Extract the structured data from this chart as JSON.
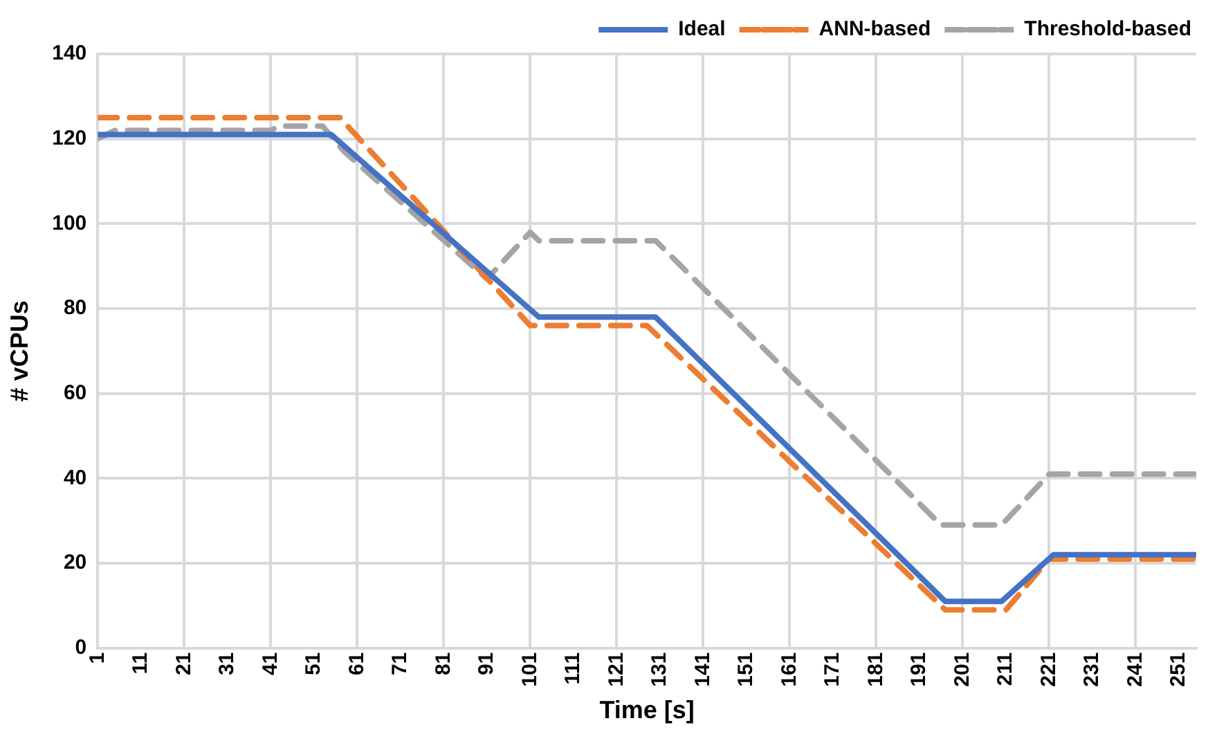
{
  "chart_data": {
    "type": "line",
    "xlabel": "Time [s]",
    "ylabel": "# vCPUs",
    "xlim": [
      1,
      255
    ],
    "xticks": [
      1,
      11,
      21,
      31,
      41,
      51,
      61,
      71,
      81,
      91,
      101,
      111,
      121,
      131,
      141,
      151,
      161,
      171,
      181,
      191,
      201,
      211,
      221,
      231,
      241,
      251
    ],
    "ylim": [
      0,
      140
    ],
    "yticks": [
      0,
      20,
      40,
      60,
      80,
      100,
      120,
      140
    ],
    "grid": true,
    "legend": "top right",
    "marker": "none",
    "series": [
      {
        "name": "Ideal",
        "color": "#4472c4",
        "line_style": "solid",
        "x": [
          1,
          55,
          103,
          130,
          197,
          210,
          222,
          255
        ],
        "values": [
          121,
          121,
          78,
          78,
          11,
          11,
          22,
          22
        ]
      },
      {
        "name": "ANN-based",
        "color": "#ed7d31",
        "line_style": "dashed",
        "x": [
          1,
          57,
          101,
          128,
          197,
          211,
          221,
          255
        ],
        "values": [
          125,
          125,
          76,
          76,
          9,
          9,
          21,
          21
        ]
      },
      {
        "name": "Threshold-based",
        "color": "#a5a5a5",
        "line_style": "dashed",
        "x": [
          1,
          5,
          41,
          43,
          53,
          58,
          91,
          101,
          103,
          130,
          196,
          210,
          221,
          255
        ],
        "values": [
          120,
          122,
          122,
          123,
          123,
          117,
          87,
          98,
          96,
          96,
          29,
          29,
          41,
          41
        ]
      }
    ]
  }
}
